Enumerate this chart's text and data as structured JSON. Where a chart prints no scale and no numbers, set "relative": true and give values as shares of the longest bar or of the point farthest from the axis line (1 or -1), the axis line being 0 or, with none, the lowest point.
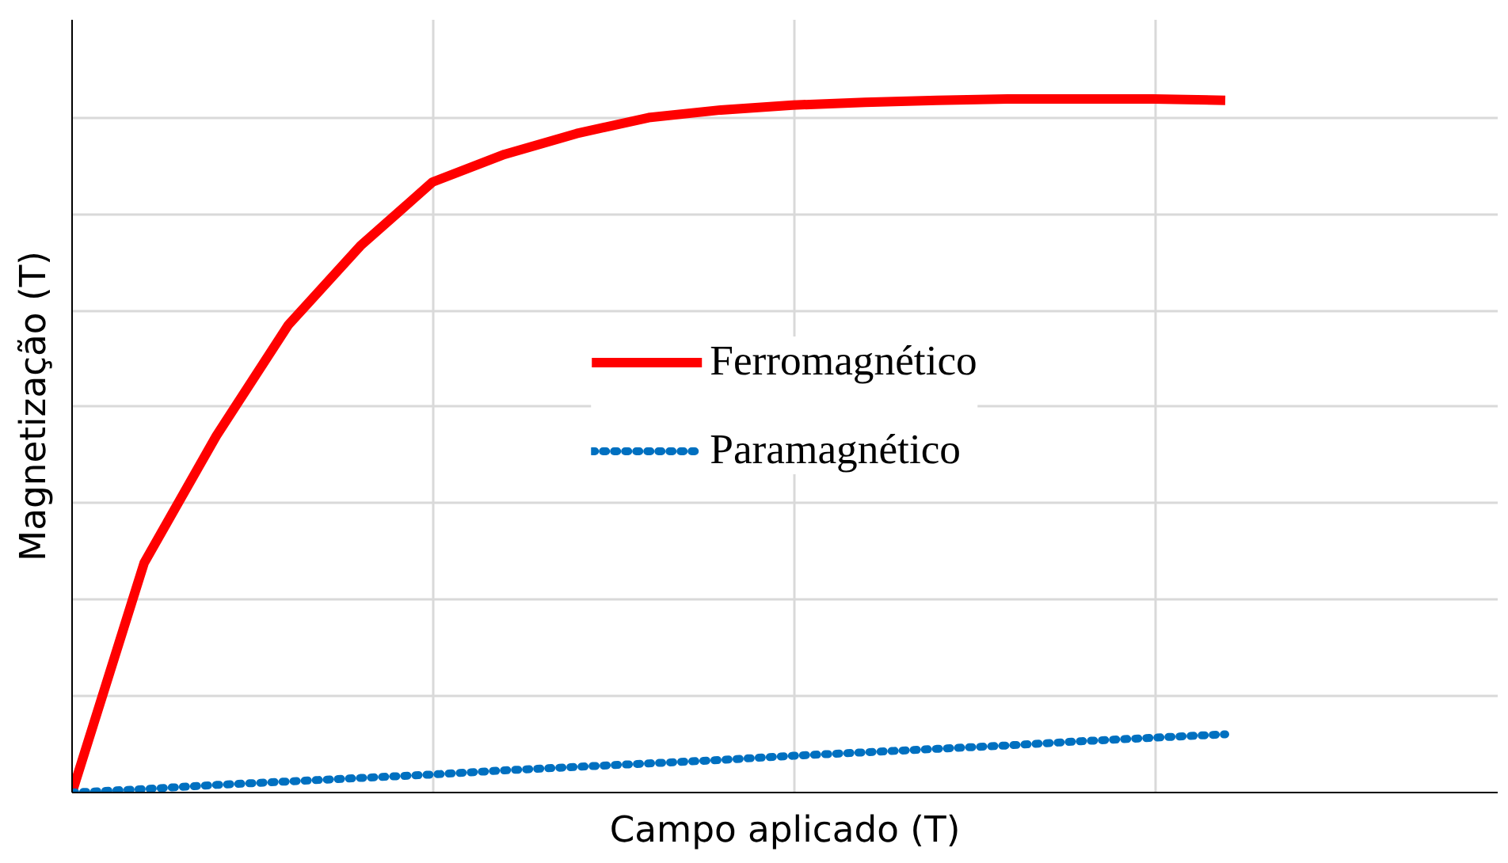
{
  "chart_data": {
    "type": "line",
    "relative": true,
    "xlabel": "Campo aplicado (T)",
    "ylabel": "Magnetização (T)",
    "categories": [
      null,
      null,
      null,
      null,
      null,
      null,
      null,
      null,
      null,
      null,
      null,
      null,
      null,
      null,
      null,
      null,
      null
    ],
    "grid": true,
    "legend": "center",
    "series": [
      {
        "name": "Ferromagnético",
        "color": "#ff0000",
        "line_style": "solid",
        "values": [
          0,
          0.331,
          0.514,
          0.674,
          0.788,
          0.88,
          0.92,
          0.95,
          0.973,
          0.984,
          0.991,
          0.995,
          0.998,
          1,
          1,
          1,
          0.998
        ]
      },
      {
        "name": "Paramagnético",
        "color": "#0070c0",
        "line_style": "dotted",
        "values": [
          0,
          0.005,
          0.011,
          0.016,
          0.021,
          0.026,
          0.032,
          0.037,
          0.042,
          0.047,
          0.053,
          0.058,
          0.063,
          0.068,
          0.074,
          0.079,
          0.084
        ]
      }
    ]
  }
}
